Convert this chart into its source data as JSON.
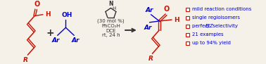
{
  "bg_color": "#f5f0e8",
  "red_color": "#cc1100",
  "blue_color": "#0000cc",
  "dark_color": "#333333",
  "bullet_red": "#cc1100",
  "reagent_lines": [
    "(30 mol %)",
    "PhCO₂H",
    "DCE",
    "rt, 24 h"
  ],
  "bullet_texts": [
    "mild reaction conditions",
    "single regioisomers",
    "perfect E/Z selectivity",
    "21 examples",
    "up to 94% yield"
  ],
  "figsize": [
    3.78,
    0.91
  ],
  "dpi": 100
}
